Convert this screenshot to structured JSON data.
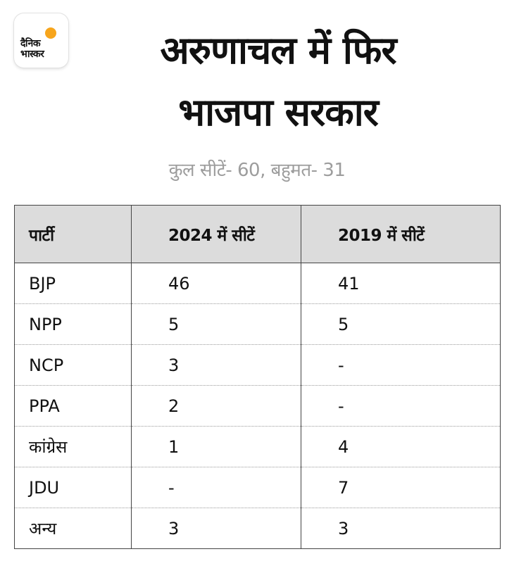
{
  "brand": {
    "logo_text": "दैनिक\nभास्कर",
    "accent_color": "#f7a51c"
  },
  "header": {
    "title": "अरुणाचल में फिर\nभाजपा सरकार",
    "subtitle": "कुल सीटें- 60, बहुमत- 31"
  },
  "table": {
    "columns": [
      "पार्टी",
      "2024 में सीटें",
      "2019 में सीटें"
    ],
    "rows": [
      [
        "BJP",
        "46",
        "41"
      ],
      [
        "NPP",
        "5",
        "5"
      ],
      [
        "NCP",
        "3",
        "-"
      ],
      [
        "PPA",
        "2",
        "-"
      ],
      [
        "कांग्रेस",
        "1",
        "4"
      ],
      [
        "JDU",
        "-",
        "7"
      ],
      [
        "अन्य",
        "3",
        "3"
      ]
    ]
  },
  "colors": {
    "header_bg": "#dcdcdc",
    "subtitle": "#9d9d9d",
    "text": "#111111"
  }
}
